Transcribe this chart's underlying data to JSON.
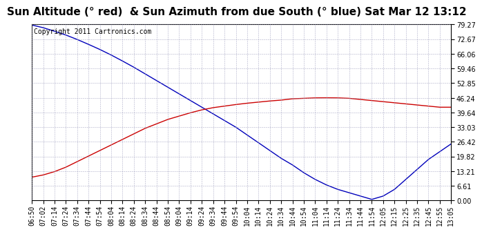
{
  "title": "Sun Altitude (° red)  & Sun Azimuth from due South (° blue) Sat Mar 12 13:12",
  "copyright": "Copyright 2011 Cartronics.com",
  "ymin": 0.0,
  "ymax": 79.27,
  "yticks": [
    0.0,
    6.61,
    13.21,
    19.82,
    26.42,
    33.03,
    39.64,
    46.24,
    52.85,
    59.46,
    66.06,
    72.67,
    79.27
  ],
  "xtick_labels": [
    "06:50",
    "07:02",
    "07:14",
    "07:24",
    "07:34",
    "07:44",
    "07:54",
    "08:04",
    "08:14",
    "08:24",
    "08:34",
    "08:44",
    "08:54",
    "09:04",
    "09:14",
    "09:24",
    "09:34",
    "09:44",
    "09:54",
    "10:04",
    "10:14",
    "10:24",
    "10:34",
    "10:44",
    "10:54",
    "11:04",
    "11:14",
    "11:24",
    "11:34",
    "11:44",
    "11:54",
    "12:05",
    "12:15",
    "12:25",
    "12:35",
    "12:45",
    "12:55",
    "13:05"
  ],
  "blue_y": [
    79.0,
    77.8,
    76.2,
    74.5,
    72.5,
    70.3,
    68.0,
    65.5,
    62.8,
    60.0,
    57.0,
    54.0,
    51.0,
    48.0,
    45.0,
    42.0,
    39.0,
    36.0,
    33.0,
    29.5,
    26.0,
    22.5,
    19.0,
    16.0,
    12.5,
    9.5,
    7.0,
    5.0,
    3.5,
    2.0,
    0.5,
    2.0,
    5.0,
    9.5,
    14.0,
    18.5,
    22.0,
    25.5
  ],
  "red_y": [
    10.5,
    11.5,
    13.0,
    15.0,
    17.5,
    20.0,
    22.5,
    25.0,
    27.5,
    30.0,
    32.5,
    34.5,
    36.5,
    38.0,
    39.5,
    40.8,
    41.8,
    42.5,
    43.2,
    43.8,
    44.3,
    44.8,
    45.2,
    45.8,
    46.0,
    46.2,
    46.24,
    46.2,
    46.0,
    45.5,
    45.0,
    44.5,
    44.0,
    43.5,
    43.0,
    42.5,
    42.0,
    42.0
  ],
  "blue_color": "#0000bb",
  "red_color": "#cc0000",
  "bg_color": "#ffffff",
  "grid_color": "#9999bb",
  "title_fontsize": 11,
  "tick_fontsize": 7,
  "copyright_fontsize": 7
}
